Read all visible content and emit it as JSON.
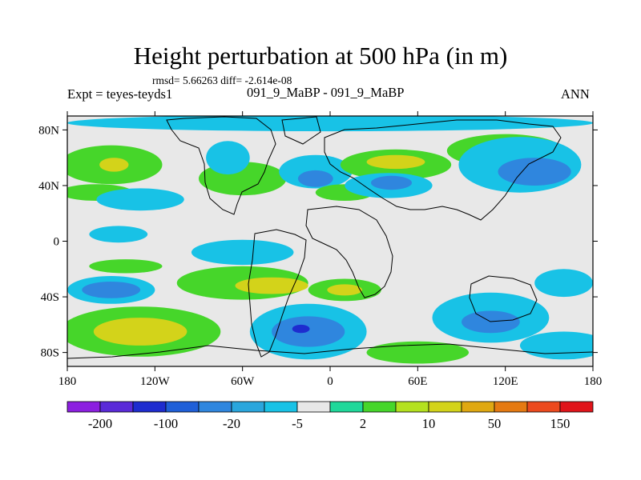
{
  "header": {
    "title": "Height perturbation at 500 hPa (in m)",
    "stats": "rmsd= 5.66263 diff= -2.614e-08",
    "experiment": "Expt = teyes-teyds1",
    "case": "091_9_MaBP - 091_9_MaBP",
    "season": "ANN"
  },
  "chart_data": {
    "type": "heatmap",
    "title": "Height perturbation at 500 hPa (in m)",
    "xlabel": "",
    "ylabel": "",
    "x_range": [
      -180,
      180
    ],
    "y_range": [
      -90,
      90
    ],
    "x_ticks": [
      {
        "value": -180,
        "label": "180"
      },
      {
        "value": -120,
        "label": "120W"
      },
      {
        "value": -60,
        "label": "60W"
      },
      {
        "value": 0,
        "label": "0"
      },
      {
        "value": 60,
        "label": "60E"
      },
      {
        "value": 120,
        "label": "120E"
      },
      {
        "value": 180,
        "label": "180"
      }
    ],
    "y_ticks": [
      {
        "value": 80,
        "label": "80N"
      },
      {
        "value": 40,
        "label": "40N"
      },
      {
        "value": 0,
        "label": "0"
      },
      {
        "value": -40,
        "label": "40S"
      },
      {
        "value": -80,
        "label": "80S"
      }
    ],
    "colorbar": {
      "colors": [
        "#8c1fe0",
        "#5a2ad8",
        "#1e2ccf",
        "#1f5fd8",
        "#2f86de",
        "#2aa6dd",
        "#18c2e6",
        "#e8e8e8",
        "#1fd89a",
        "#46d62a",
        "#b4e11f",
        "#d3d31a",
        "#dfa812",
        "#e57a12",
        "#ec4a1e",
        "#e0141a"
      ],
      "tick_labels": [
        "-200",
        "-100",
        "-20",
        "-5",
        "2",
        "10",
        "50",
        "150"
      ]
    },
    "features": [
      {
        "level": "-5",
        "lon": 0,
        "lat": 85,
        "rx": 180,
        "ry": 6
      },
      {
        "level": "10",
        "lon": -150,
        "lat": 55,
        "rx": 35,
        "ry": 14
      },
      {
        "level": "50",
        "lon": -148,
        "lat": 55,
        "rx": 10,
        "ry": 5
      },
      {
        "level": "10",
        "lon": -160,
        "lat": 35,
        "rx": 25,
        "ry": 6
      },
      {
        "level": "-5",
        "lon": -130,
        "lat": 30,
        "rx": 30,
        "ry": 8
      },
      {
        "level": "10",
        "lon": -60,
        "lat": 45,
        "rx": 30,
        "ry": 12
      },
      {
        "level": "-5",
        "lon": -70,
        "lat": 60,
        "rx": 15,
        "ry": 12
      },
      {
        "level": "-5",
        "lon": -10,
        "lat": 50,
        "rx": 25,
        "ry": 12
      },
      {
        "level": "-20",
        "lon": -10,
        "lat": 45,
        "rx": 12,
        "ry": 6
      },
      {
        "level": "10",
        "lon": 10,
        "lat": 35,
        "rx": 20,
        "ry": 6
      },
      {
        "level": "10",
        "lon": 45,
        "lat": 55,
        "rx": 38,
        "ry": 11
      },
      {
        "level": "50",
        "lon": 45,
        "lat": 57,
        "rx": 20,
        "ry": 5
      },
      {
        "level": "-5",
        "lon": 40,
        "lat": 40,
        "rx": 30,
        "ry": 9
      },
      {
        "level": "-20",
        "lon": 42,
        "lat": 42,
        "rx": 14,
        "ry": 5
      },
      {
        "level": "10",
        "lon": 120,
        "lat": 65,
        "rx": 40,
        "ry": 12
      },
      {
        "level": "-5",
        "lon": 130,
        "lat": 55,
        "rx": 42,
        "ry": 20
      },
      {
        "level": "-20",
        "lon": 140,
        "lat": 50,
        "rx": 25,
        "ry": 10
      },
      {
        "level": "-5",
        "lon": -145,
        "lat": 5,
        "rx": 20,
        "ry": 6
      },
      {
        "level": "-5",
        "lon": -60,
        "lat": -8,
        "rx": 35,
        "ry": 9
      },
      {
        "level": "10",
        "lon": -140,
        "lat": -18,
        "rx": 25,
        "ry": 5
      },
      {
        "level": "-5",
        "lon": -150,
        "lat": -35,
        "rx": 30,
        "ry": 10
      },
      {
        "level": "-20",
        "lon": -150,
        "lat": -35,
        "rx": 20,
        "ry": 6
      },
      {
        "level": "10",
        "lon": -60,
        "lat": -30,
        "rx": 45,
        "ry": 12
      },
      {
        "level": "50",
        "lon": -40,
        "lat": -32,
        "rx": 25,
        "ry": 6
      },
      {
        "level": "10",
        "lon": -130,
        "lat": -65,
        "rx": 55,
        "ry": 18
      },
      {
        "level": "50",
        "lon": -130,
        "lat": -65,
        "rx": 32,
        "ry": 10
      },
      {
        "level": "10",
        "lon": 10,
        "lat": -35,
        "rx": 25,
        "ry": 8
      },
      {
        "level": "50",
        "lon": 10,
        "lat": -35,
        "rx": 12,
        "ry": 4
      },
      {
        "level": "-5",
        "lon": -15,
        "lat": -65,
        "rx": 40,
        "ry": 20
      },
      {
        "level": "-20",
        "lon": -15,
        "lat": -65,
        "rx": 25,
        "ry": 11
      },
      {
        "level": "-100",
        "lon": -20,
        "lat": -63,
        "rx": 6,
        "ry": 3
      },
      {
        "level": "-5",
        "lon": 110,
        "lat": -55,
        "rx": 40,
        "ry": 18
      },
      {
        "level": "-20",
        "lon": 110,
        "lat": -58,
        "rx": 20,
        "ry": 8
      },
      {
        "level": "-5",
        "lon": 160,
        "lat": -30,
        "rx": 20,
        "ry": 10
      },
      {
        "level": "-5",
        "lon": 160,
        "lat": -75,
        "rx": 30,
        "ry": 10
      },
      {
        "level": "10",
        "lon": 60,
        "lat": -80,
        "rx": 35,
        "ry": 8
      }
    ]
  }
}
